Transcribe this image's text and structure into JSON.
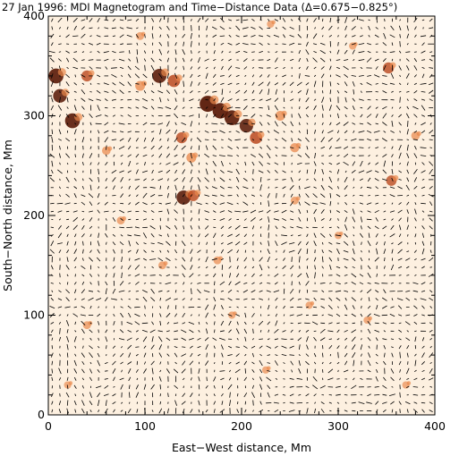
{
  "chart_data": {
    "type": "scatter",
    "title": "27 Jan 1996:  MDI Magnetogram and Time−Distance Data  (Δ=0.675−0.825°)",
    "xlabel": "East−West distance, Mm",
    "ylabel": "South−North distance, Mm",
    "xlim": [
      0,
      400
    ],
    "ylim": [
      0,
      400
    ],
    "x_ticks": [
      "0",
      "100",
      "200",
      "300",
      "400"
    ],
    "y_ticks": [
      "0",
      "100",
      "200",
      "300",
      "400"
    ],
    "x_tick_values": [
      0,
      100,
      200,
      300,
      400
    ],
    "y_tick_values": [
      0,
      100,
      200,
      300,
      400
    ],
    "grid": false,
    "background_field": "time-distance flow vectors (short black arrows) over MDI magnetogram",
    "magnetic_regions": [
      {
        "x": 8,
        "y": 340,
        "strength": 0.9
      },
      {
        "x": 12,
        "y": 320,
        "strength": 0.8
      },
      {
        "x": 25,
        "y": 295,
        "strength": 0.9
      },
      {
        "x": 40,
        "y": 340,
        "strength": 0.6
      },
      {
        "x": 95,
        "y": 330,
        "strength": 0.5
      },
      {
        "x": 115,
        "y": 340,
        "strength": 0.85
      },
      {
        "x": 130,
        "y": 335,
        "strength": 0.7
      },
      {
        "x": 165,
        "y": 312,
        "strength": 1.0
      },
      {
        "x": 178,
        "y": 305,
        "strength": 0.95
      },
      {
        "x": 190,
        "y": 298,
        "strength": 0.9
      },
      {
        "x": 205,
        "y": 290,
        "strength": 0.8
      },
      {
        "x": 215,
        "y": 278,
        "strength": 0.7
      },
      {
        "x": 138,
        "y": 278,
        "strength": 0.6
      },
      {
        "x": 148,
        "y": 258,
        "strength": 0.5
      },
      {
        "x": 140,
        "y": 218,
        "strength": 0.85
      },
      {
        "x": 150,
        "y": 220,
        "strength": 0.6
      },
      {
        "x": 240,
        "y": 300,
        "strength": 0.5
      },
      {
        "x": 255,
        "y": 268,
        "strength": 0.45
      },
      {
        "x": 352,
        "y": 348,
        "strength": 0.6
      },
      {
        "x": 380,
        "y": 280,
        "strength": 0.4
      },
      {
        "x": 355,
        "y": 235,
        "strength": 0.55
      },
      {
        "x": 60,
        "y": 265,
        "strength": 0.4
      },
      {
        "x": 75,
        "y": 195,
        "strength": 0.35
      },
      {
        "x": 255,
        "y": 215,
        "strength": 0.35
      },
      {
        "x": 300,
        "y": 180,
        "strength": 0.3
      },
      {
        "x": 118,
        "y": 150,
        "strength": 0.35
      },
      {
        "x": 175,
        "y": 155,
        "strength": 0.35
      },
      {
        "x": 330,
        "y": 95,
        "strength": 0.3
      },
      {
        "x": 40,
        "y": 90,
        "strength": 0.35
      },
      {
        "x": 225,
        "y": 45,
        "strength": 0.3
      },
      {
        "x": 370,
        "y": 30,
        "strength": 0.3
      },
      {
        "x": 20,
        "y": 30,
        "strength": 0.3
      },
      {
        "x": 190,
        "y": 100,
        "strength": 0.3
      },
      {
        "x": 270,
        "y": 110,
        "strength": 0.3
      },
      {
        "x": 95,
        "y": 380,
        "strength": 0.35
      },
      {
        "x": 230,
        "y": 392,
        "strength": 0.3
      },
      {
        "x": 315,
        "y": 370,
        "strength": 0.3
      }
    ],
    "colors": {
      "magnetogram_low": "#fdf0e0",
      "magnetogram_mid": "#e8874a",
      "magnetogram_high": "#5a1a08",
      "arrows": "#000000",
      "axes": "#000000"
    }
  }
}
